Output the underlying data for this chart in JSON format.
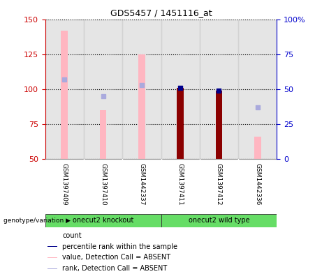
{
  "title": "GDS5457 / 1451116_at",
  "samples": [
    "GSM1397409",
    "GSM1397410",
    "GSM1442337",
    "GSM1397411",
    "GSM1397412",
    "GSM1442336"
  ],
  "ylim_left": [
    50,
    150
  ],
  "yticks_left": [
    50,
    75,
    100,
    125,
    150
  ],
  "ytick_labels_left": [
    "50",
    "75",
    "100",
    "125",
    "150"
  ],
  "yticks_right": [
    50,
    75,
    100,
    125,
    150
  ],
  "ytick_labels_right": [
    "0",
    "25",
    "50",
    "75",
    "100%"
  ],
  "left_axis_color": "#CC0000",
  "right_axis_color": "#0000CC",
  "bar_values_absent": [
    142,
    85,
    125,
    0,
    0,
    66
  ],
  "rank_values_absent": [
    107,
    95,
    103,
    0,
    0,
    87
  ],
  "count_values": [
    0,
    0,
    0,
    101,
    99,
    0
  ],
  "percentile_values": [
    0,
    0,
    0,
    101,
    99,
    0
  ],
  "absent_mask": [
    true,
    true,
    true,
    false,
    false,
    true
  ],
  "bar_color_absent": "#FFB6C1",
  "bar_color_present_count": "#8B0000",
  "rank_color_absent": "#AAAADD",
  "percentile_color_present": "#00008B",
  "legend_items": [
    {
      "color": "#8B0000",
      "label": "count"
    },
    {
      "color": "#00008B",
      "label": "percentile rank within the sample"
    },
    {
      "color": "#FFB6C1",
      "label": "value, Detection Call = ABSENT"
    },
    {
      "color": "#AAAADD",
      "label": "rank, Detection Call = ABSENT"
    }
  ],
  "genotype_label": "genotype/variation",
  "grid_color": "black",
  "background_sample_area": "#CCCCCC",
  "group1_name": "onecut2 knockout",
  "group2_name": "onecut2 wild type",
  "group_color": "#66DD66"
}
